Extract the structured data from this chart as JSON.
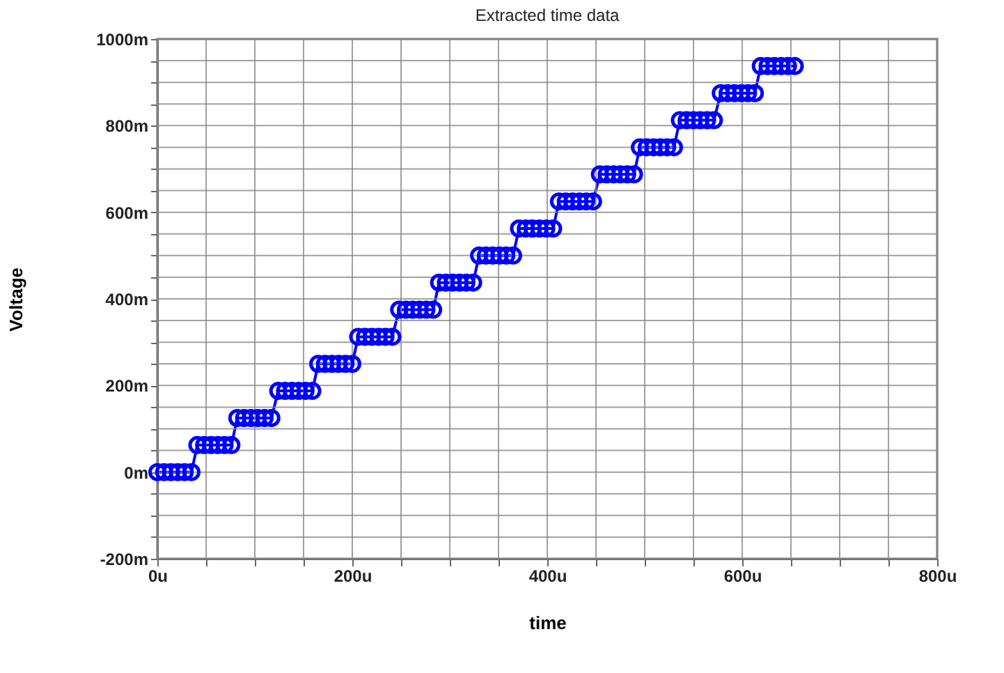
{
  "chart_data": {
    "type": "line",
    "title": "Extracted time data",
    "xlabel": "time",
    "ylabel": "Voltage",
    "x": [
      0,
      7,
      14,
      21,
      28,
      35,
      41,
      48,
      55,
      62,
      69,
      76,
      82,
      89,
      96,
      103,
      110,
      117,
      124,
      131,
      138,
      145,
      152,
      159,
      165,
      172,
      179,
      186,
      193,
      200,
      206,
      213,
      220,
      227,
      234,
      241,
      248,
      255,
      262,
      269,
      276,
      283,
      289,
      296,
      303,
      310,
      317,
      324,
      330,
      337,
      344,
      351,
      358,
      365,
      371,
      378,
      385,
      392,
      399,
      406,
      412,
      419,
      426,
      433,
      440,
      447,
      454,
      461,
      468,
      475,
      482,
      489,
      495,
      502,
      509,
      516,
      523,
      530,
      536,
      543,
      550,
      557,
      564,
      571,
      578,
      585,
      592,
      599,
      606,
      613,
      619,
      626,
      633,
      640,
      647,
      654
    ],
    "series": [
      {
        "color": "#0000ff",
        "values": [
          0,
          0,
          0,
          0,
          0,
          0,
          62.5,
          62.5,
          62.5,
          62.5,
          62.5,
          62.5,
          125,
          125,
          125,
          125,
          125,
          125,
          187.5,
          187.5,
          187.5,
          187.5,
          187.5,
          187.5,
          250,
          250,
          250,
          250,
          250,
          250,
          312.5,
          312.5,
          312.5,
          312.5,
          312.5,
          312.5,
          375,
          375,
          375,
          375,
          375,
          375,
          437.5,
          437.5,
          437.5,
          437.5,
          437.5,
          437.5,
          500,
          500,
          500,
          500,
          500,
          500,
          562.5,
          562.5,
          562.5,
          562.5,
          562.5,
          562.5,
          625,
          625,
          625,
          625,
          625,
          625,
          687.5,
          687.5,
          687.5,
          687.5,
          687.5,
          687.5,
          750,
          750,
          750,
          750,
          750,
          750,
          812.5,
          812.5,
          812.5,
          812.5,
          812.5,
          812.5,
          875,
          875,
          875,
          875,
          875,
          875,
          937.5,
          937.5,
          937.5,
          937.5,
          937.5,
          937.5
        ]
      }
    ],
    "marker": "circle",
    "line_style": "solid",
    "grid": true,
    "xlim": [
      0,
      800
    ],
    "xticks": [
      {
        "value": 0,
        "label": "0u"
      },
      {
        "value": 50,
        "label": null
      },
      {
        "value": 100,
        "label": null
      },
      {
        "value": 150,
        "label": null
      },
      {
        "value": 200,
        "label": "200u"
      },
      {
        "value": 250,
        "label": null
      },
      {
        "value": 300,
        "label": null
      },
      {
        "value": 350,
        "label": null
      },
      {
        "value": 400,
        "label": "400u"
      },
      {
        "value": 450,
        "label": null
      },
      {
        "value": 500,
        "label": null
      },
      {
        "value": 550,
        "label": null
      },
      {
        "value": 600,
        "label": "600u"
      },
      {
        "value": 650,
        "label": null
      },
      {
        "value": 700,
        "label": null
      },
      {
        "value": 750,
        "label": null
      },
      {
        "value": 800,
        "label": "800u"
      }
    ],
    "ylim": [
      -200,
      1000
    ],
    "yticks": [
      {
        "value": -200,
        "label": "-200m"
      },
      {
        "value": -150,
        "label": null
      },
      {
        "value": -100,
        "label": null
      },
      {
        "value": -50,
        "label": null
      },
      {
        "value": 0,
        "label": "0m"
      },
      {
        "value": 50,
        "label": null
      },
      {
        "value": 100,
        "label": null
      },
      {
        "value": 150,
        "label": null
      },
      {
        "value": 200,
        "label": "200m"
      },
      {
        "value": 250,
        "label": null
      },
      {
        "value": 300,
        "label": null
      },
      {
        "value": 350,
        "label": null
      },
      {
        "value": 400,
        "label": "400m"
      },
      {
        "value": 450,
        "label": null
      },
      {
        "value": 500,
        "label": null
      },
      {
        "value": 550,
        "label": null
      },
      {
        "value": 600,
        "label": "600m"
      },
      {
        "value": 650,
        "label": null
      },
      {
        "value": 700,
        "label": null
      },
      {
        "value": 750,
        "label": null
      },
      {
        "value": 800,
        "label": "800m"
      },
      {
        "value": 850,
        "label": null
      },
      {
        "value": 900,
        "label": null
      },
      {
        "value": 950,
        "label": null
      },
      {
        "value": 1000,
        "label": "1000m"
      }
    ]
  }
}
